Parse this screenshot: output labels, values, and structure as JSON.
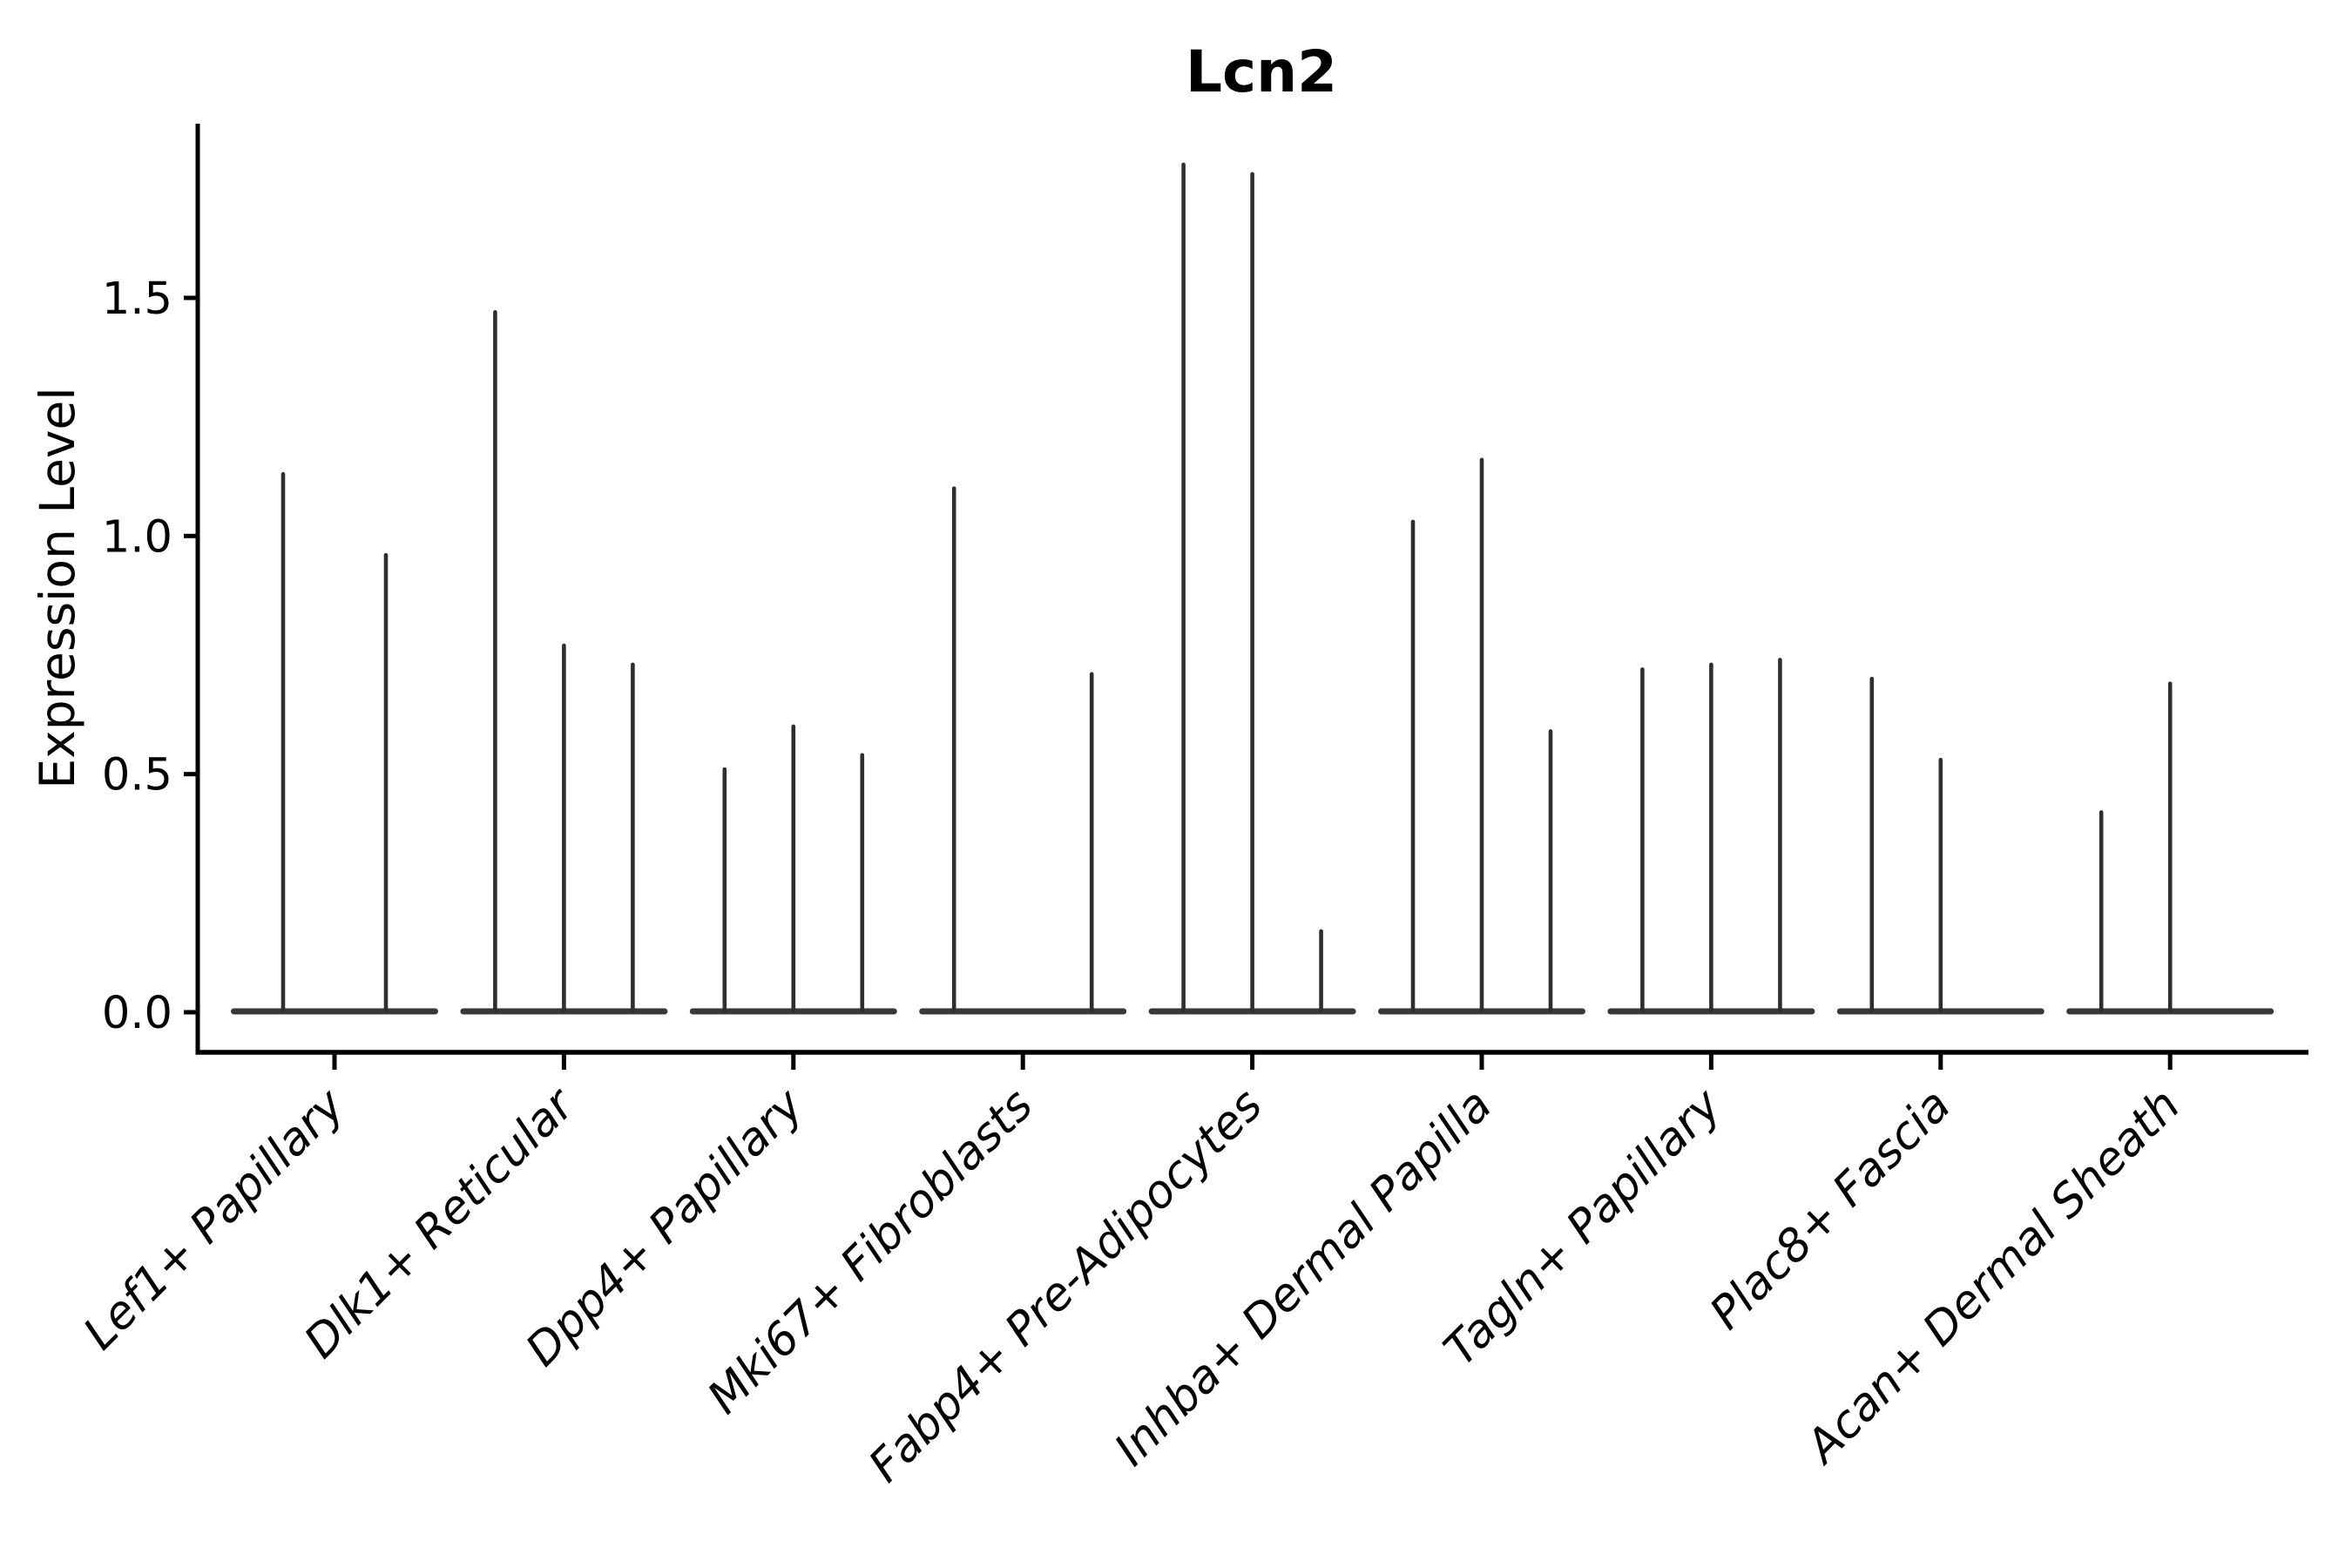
{
  "chart_data": {
    "type": "violin",
    "title": "Lcn2",
    "ylabel": "Expression Level",
    "xlabel": "",
    "yticks": [
      {
        "value": 0.0,
        "label": "0.0"
      },
      {
        "value": 0.5,
        "label": "0.5"
      },
      {
        "value": 1.0,
        "label": "1.0"
      },
      {
        "value": 1.5,
        "label": "1.5"
      }
    ],
    "ylim": [
      -0.09,
      1.87
    ],
    "grid": false,
    "legend": "none",
    "style": "thin black violins (spike at density tail) with flat base strip at 0 per cluster; left and bottom spines only; x labels rotated 45deg italic",
    "groups": [
      {
        "label": "Lef1+ Papillary",
        "violin_max": [
          1.13,
          0.96
        ]
      },
      {
        "label": "Dlk1+ Reticular",
        "violin_max": [
          1.47,
          0.77,
          0.73
        ]
      },
      {
        "label": "Dpp4+ Papillary",
        "violin_max": [
          0.51,
          0.6,
          0.54
        ]
      },
      {
        "label": "Mki67+ Fibroblasts",
        "violin_max": [
          1.1,
          0.0,
          0.71
        ]
      },
      {
        "label": "Fabp4+ Pre-Adipocytes",
        "violin_max": [
          1.78,
          1.76,
          0.17
        ]
      },
      {
        "label": "Inhba+ Dermal Papilla",
        "violin_max": [
          1.03,
          1.16,
          0.59
        ]
      },
      {
        "label": "Tagln+ Papillary",
        "violin_max": [
          0.72,
          0.73,
          0.74
        ]
      },
      {
        "label": "Plac8+ Fascia",
        "violin_max": [
          0.7,
          0.53,
          0.0
        ]
      },
      {
        "label": "Acan+ Dermal Sheath",
        "violin_max": [
          0.42,
          0.69,
          0.0
        ]
      }
    ],
    "colors": {
      "background": "#ffffff",
      "axis": "#000000",
      "text": "#000000",
      "violin_spike": "#2e2e2e",
      "violin_base": "#383838"
    }
  }
}
